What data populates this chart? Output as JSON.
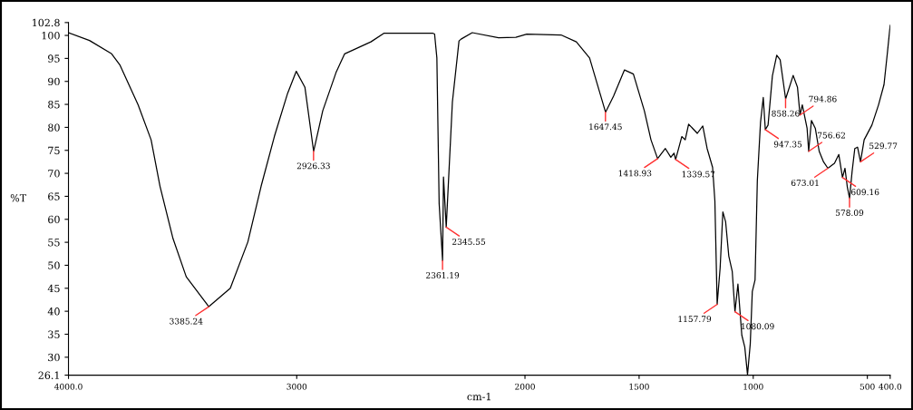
{
  "chart_data": {
    "type": "line",
    "xlabel": "cm-1",
    "ylabel": "%T",
    "xlim": [
      4000,
      400
    ],
    "ylim": [
      26.1,
      102.8
    ],
    "xticks": [
      {
        "value": 4000,
        "label": "4000.0"
      },
      3000,
      2000,
      1500,
      1000,
      500,
      {
        "value": 400,
        "label": "400.0"
      }
    ],
    "yticks": [
      26.1,
      30,
      35,
      40,
      45,
      50,
      55,
      60,
      65,
      70,
      75,
      80,
      85,
      90,
      95,
      100,
      102.8
    ],
    "grid": false,
    "series": [
      {
        "color": "#000000",
        "x": [
          4000,
          3908,
          3811,
          3774,
          3695,
          3638,
          3599,
          3542,
          3484,
          3385,
          3291,
          3214,
          3156,
          3098,
          3040,
          3002,
          2964,
          2926,
          2886,
          2828,
          2790,
          2675,
          2617,
          2405,
          2396,
          2386,
          2376,
          2361,
          2357,
          2345,
          2318,
          2289,
          2280,
          2231,
          2116,
          2040,
          1992,
          1842,
          1775,
          1717,
          1679,
          1647,
          1612,
          1564,
          1525,
          1477,
          1448,
          1419,
          1385,
          1361,
          1347,
          1340,
          1313,
          1298,
          1283,
          1245,
          1221,
          1202,
          1178,
          1168,
          1158,
          1145,
          1133,
          1121,
          1107,
          1092,
          1080,
          1067,
          1050,
          1037,
          1025,
          1013,
          1004,
          992,
          982,
          968,
          956,
          947,
          935,
          916,
          897,
          882,
          858,
          825,
          806,
          795,
          785,
          764,
          757,
          745,
          728,
          711,
          692,
          673,
          644,
          625,
          609,
          598,
          588,
          578,
          567,
          555,
          543,
          530,
          514,
          480,
          451,
          427,
          412,
          400
        ],
        "values": [
          100.6,
          98.9,
          96.0,
          93.5,
          84.9,
          77.3,
          67.2,
          55.8,
          47.5,
          41.0,
          45.0,
          55.1,
          67.2,
          78.0,
          87.4,
          92.2,
          88.7,
          74.8,
          83.6,
          91.9,
          96.0,
          98.6,
          100.5,
          100.5,
          100.3,
          95.1,
          63.4,
          51.0,
          69.2,
          58.3,
          85.5,
          98.8,
          99.2,
          100.6,
          99.5,
          99.6,
          100.3,
          100.1,
          98.6,
          95.1,
          88.7,
          83.3,
          86.8,
          92.5,
          91.6,
          83.6,
          77.3,
          73.2,
          75.4,
          73.5,
          74.4,
          73.0,
          78.0,
          77.3,
          80.7,
          78.7,
          80.3,
          75.4,
          71.3,
          64.0,
          41.5,
          49.4,
          61.6,
          59.5,
          52.0,
          48.7,
          39.9,
          45.9,
          34.8,
          32.2,
          26.2,
          32.9,
          44.3,
          46.8,
          68.4,
          81.1,
          86.5,
          79.5,
          80.5,
          91.2,
          95.7,
          94.7,
          86.2,
          91.3,
          88.7,
          82.7,
          84.9,
          79.8,
          74.8,
          81.5,
          79.8,
          74.8,
          72.5,
          71.1,
          72.2,
          74.1,
          69.1,
          71.1,
          67.1,
          64.6,
          70.3,
          75.4,
          75.7,
          72.5,
          77.3,
          80.5,
          84.9,
          89.3,
          96.3,
          102.2
        ]
      }
    ],
    "annotations": [
      {
        "text": "3385.24",
        "x": 3385.24,
        "y": 41.0
      },
      {
        "text": "2926.33",
        "x": 2926.33,
        "y": 74.8
      },
      {
        "text": "2361.19",
        "x": 2361.19,
        "y": 51.0
      },
      {
        "text": "2345.55",
        "x": 2345.55,
        "y": 58.3
      },
      {
        "text": "1647.45",
        "x": 1647.45,
        "y": 83.3
      },
      {
        "text": "1418.93",
        "x": 1418.93,
        "y": 73.2
      },
      {
        "text": "1339.57",
        "x": 1339.57,
        "y": 73.0
      },
      {
        "text": "1157.79",
        "x": 1157.79,
        "y": 41.5
      },
      {
        "text": "1080.09",
        "x": 1080.09,
        "y": 39.9
      },
      {
        "text": "947.35",
        "x": 947.35,
        "y": 79.5
      },
      {
        "text": "858.26",
        "x": 858.26,
        "y": 86.2
      },
      {
        "text": "794.86",
        "x": 794.86,
        "y": 82.7
      },
      {
        "text": "756.62",
        "x": 756.62,
        "y": 74.8
      },
      {
        "text": "673.01",
        "x": 673.01,
        "y": 71.1
      },
      {
        "text": "609.16",
        "x": 609.16,
        "y": 69.1
      },
      {
        "text": "578.09",
        "x": 578.09,
        "y": 64.6
      },
      {
        "text": "529.77",
        "x": 529.77,
        "y": 72.5
      }
    ]
  }
}
